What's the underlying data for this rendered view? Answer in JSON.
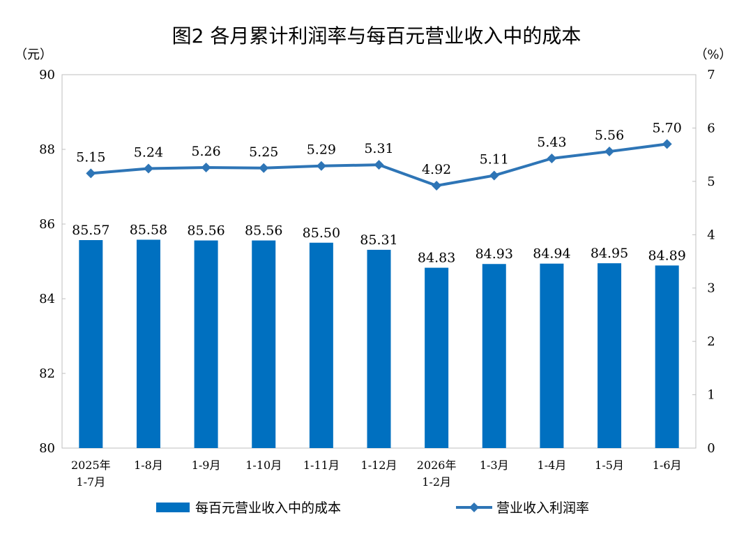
{
  "chart_data": {
    "type": "bar",
    "title": "图2  各月累计利润率与每百元营业收入中的成本",
    "y_left_unit": "（元）",
    "y_right_unit": "（%）",
    "categories": [
      [
        "2025年",
        "1-7月"
      ],
      [
        "1-8月"
      ],
      [
        "1-9月"
      ],
      [
        "1-10月"
      ],
      [
        "1-11月"
      ],
      [
        "1-12月"
      ],
      [
        "2026年",
        "1-2月"
      ],
      [
        "1-3月"
      ],
      [
        "1-4月"
      ],
      [
        "1-5月"
      ],
      [
        "1-6月"
      ]
    ],
    "y_left": {
      "min": 80,
      "max": 90,
      "ticks": [
        "80",
        "82",
        "84",
        "86",
        "88",
        "90"
      ]
    },
    "y_right": {
      "min": 0,
      "max": 7,
      "ticks": [
        "0",
        "1",
        "2",
        "3",
        "4",
        "5",
        "6",
        "7"
      ]
    },
    "series": [
      {
        "name": "每百元营业收入中的成本",
        "type": "bar",
        "axis": "left",
        "color": "#0070c0",
        "values": [
          85.57,
          85.58,
          85.56,
          85.56,
          85.5,
          85.31,
          84.83,
          84.93,
          84.94,
          84.95,
          84.89
        ],
        "labels": [
          "85.57",
          "85.58",
          "85.56",
          "85.56",
          "85.50",
          "85.31",
          "84.83",
          "84.93",
          "84.94",
          "84.95",
          "84.89"
        ]
      },
      {
        "name": "营业收入利润率",
        "type": "line",
        "axis": "right",
        "marker": "diamond",
        "color": "#2e75b6",
        "values": [
          5.15,
          5.24,
          5.26,
          5.25,
          5.29,
          5.31,
          4.92,
          5.11,
          5.43,
          5.56,
          5.7
        ],
        "labels": [
          "5.15",
          "5.24",
          "5.26",
          "5.25",
          "5.29",
          "5.31",
          "4.92",
          "5.11",
          "5.43",
          "5.56",
          "5.70"
        ]
      }
    ],
    "grid": false,
    "legend_position": "bottom"
  }
}
